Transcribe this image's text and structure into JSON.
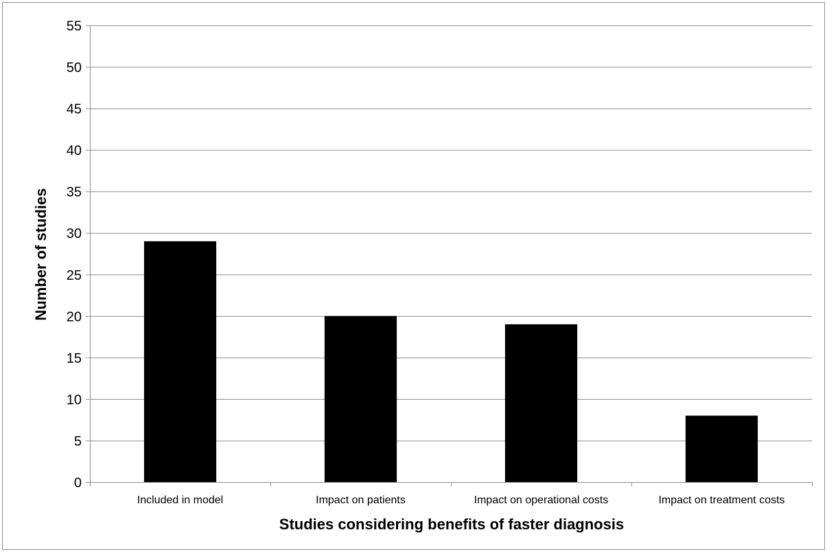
{
  "chart_data": {
    "type": "bar",
    "title": "",
    "xlabel": "Studies considering benefits of faster diagnosis",
    "ylabel": "Number of studies",
    "categories": [
      "Included in model",
      "Impact on patients",
      "Impact on operational costs",
      "Impact on treatment costs"
    ],
    "values": [
      29,
      20,
      19,
      8
    ],
    "ylim": [
      0,
      55
    ],
    "yticks": [
      0,
      5,
      10,
      15,
      20,
      25,
      30,
      35,
      40,
      45,
      50,
      55
    ],
    "grid": true,
    "legend": "none",
    "bar_color": "#000000",
    "grid_color": "#8c8c8c"
  }
}
